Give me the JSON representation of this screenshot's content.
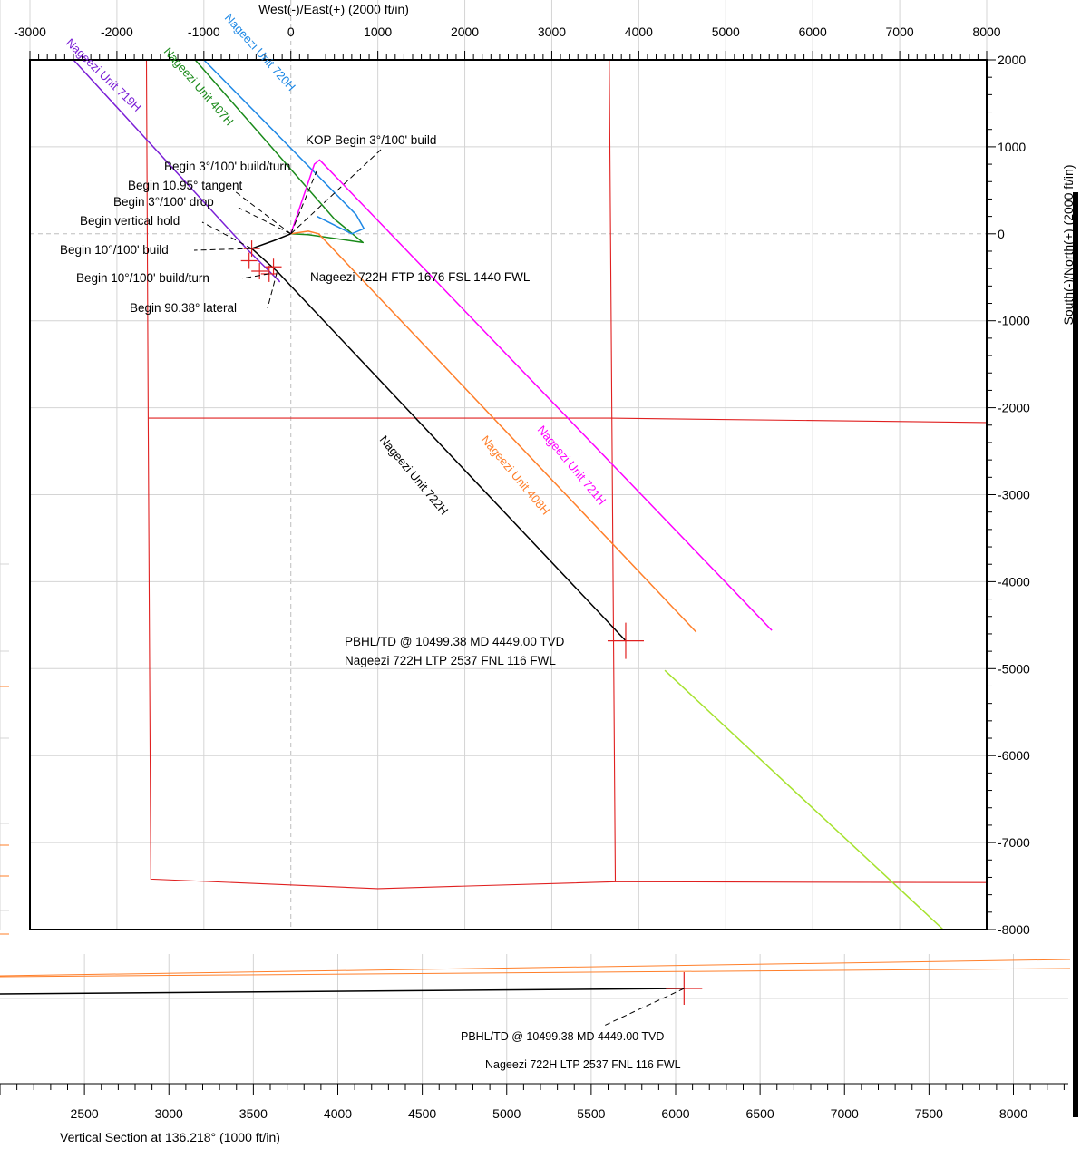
{
  "chart_data": [
    {
      "type": "line",
      "title": "",
      "xlabel": "West(-)/East(+) (2000 ft/in)",
      "ylabel": "South(-)/North(+) (2000 ft/in)",
      "xlim": [
        -3000,
        8000
      ],
      "ylim": [
        -8000,
        2000
      ],
      "xticks": [
        "-3000",
        "-2000",
        "-1000",
        "0",
        "1000",
        "2000",
        "3000",
        "4000",
        "5000",
        "6000",
        "7000",
        "8000"
      ],
      "yticks": [
        "2000",
        "1000",
        "0",
        "-1000",
        "-2000",
        "-3000",
        "-4000",
        "-5000",
        "-6000",
        "-7000",
        "-8000"
      ],
      "grid": true,
      "series": [
        {
          "name": "Nageezi Unit 722H",
          "color": "#000000",
          "x": [
            0,
            -200,
            -450,
            -150,
            3850
          ],
          "y": [
            0,
            -80,
            -170,
            -440,
            -4680
          ]
        },
        {
          "name": "Nageezi Unit 719H",
          "color": "#7b1fd6",
          "x": [
            -2500,
            -500,
            -130,
            -150
          ],
          "y": [
            2000,
            -180,
            -550,
            -520
          ]
        },
        {
          "name": "Nageezi Unit 407H",
          "color": "#1a8a1a",
          "x": [
            -1100,
            500,
            830,
            200,
            0
          ],
          "y": [
            2000,
            170,
            -100,
            -10,
            0
          ]
        },
        {
          "name": "Nageezi Unit 720H",
          "color": "#1e88e5",
          "x": [
            -1000,
            750,
            840,
            700,
            500,
            300
          ],
          "y": [
            2000,
            220,
            60,
            0,
            100,
            200
          ]
        },
        {
          "name": "Nageezi Unit 721H",
          "color": "#ff00ff",
          "x": [
            0,
            270,
            330,
            5530
          ],
          "y": [
            0,
            800,
            850,
            -4560
          ]
        },
        {
          "name": "Nageezi Unit 408H",
          "color": "#ff7f2a",
          "x": [
            0,
            200,
            320,
            4660
          ],
          "y": [
            0,
            30,
            0,
            -4580
          ]
        },
        {
          "name": "",
          "color": "#a6e22e",
          "x": [
            4300,
            7500
          ],
          "y": [
            -5020,
            -8000
          ]
        }
      ],
      "lease_lines": [
        {
          "x": [
            -1660,
            -1640,
            -1610,
            1000,
            3730,
            3660,
            -1660
          ],
          "y": [
            2000,
            -2120,
            -7420,
            -7530,
            -7450,
            2000,
            2000
          ]
        },
        {
          "x": [
            -1640,
            3660,
            8000
          ],
          "y": [
            -2120,
            -2120,
            -2170
          ]
        },
        {
          "x": [
            3730,
            8000
          ],
          "y": [
            -7450,
            -7460
          ]
        }
      ],
      "annotations": {
        "kop": "KOP Begin 3°/100' build",
        "build_turn": "Begin 3°/100' build/turn",
        "tangent": "Begin 10.95° tangent",
        "drop": "Begin 3°/100' drop",
        "vertical_hold": "Begin vertical hold",
        "build10": "Begin 10°/100' build",
        "build10_turn": "Begin 10°/100' build/turn",
        "lateral": "Begin 90.38° lateral",
        "ftp": "Nageezi 722H FTP 1676 FSL 1440 FWL",
        "pbhl": "PBHL/TD @ 10499.38 MD 4449.00 TVD",
        "ltp": "Nageezi 722H LTP 2537 FNL 116 FWL"
      },
      "well_labels": [
        "Nageezi Unit 719H",
        "Nageezi Unit 407H",
        "Nageezi Unit 720H",
        "Nageezi Unit 722H",
        "Nageezi Unit 408H",
        "Nageezi Unit 721H"
      ]
    },
    {
      "type": "line",
      "xlabel": "Vertical Section at 136.218° (1000 ft/in)",
      "xlim": [
        2000,
        8400
      ],
      "xticks": [
        "2500",
        "3000",
        "3500",
        "4000",
        "4500",
        "5000",
        "5500",
        "6000",
        "6500",
        "7000",
        "7500",
        "8000"
      ],
      "grid": true,
      "annotations": {
        "pbhl": "PBHL/TD @ 10499.38 MD 4449.00 TVD",
        "ltp": "Nageezi 722H LTP 2537 FNL 116 FWL"
      }
    }
  ]
}
